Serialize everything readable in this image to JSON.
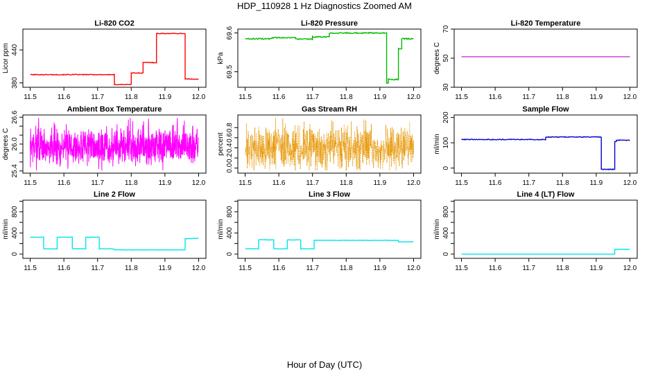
{
  "title": "HDP_110928  1 Hz Diagnostics Zoomed AM",
  "xlabel": "Hour of Day (UTC)",
  "chart_data": [
    {
      "type": "line",
      "title": "Li-820 CO2",
      "ylabel": "Licor ppm",
      "color": "#ff0000",
      "xlim": [
        11.5,
        12.0
      ],
      "xticks": [
        11.5,
        11.6,
        11.7,
        11.8,
        11.9,
        12.0
      ],
      "xtick_labels": [
        "11.5",
        "11.6",
        "11.7",
        "11.8",
        "11.9",
        "12.0"
      ],
      "ylim": [
        372,
        478
      ],
      "yticks": [
        380,
        440
      ],
      "ytick_labels": [
        "380",
        "440"
      ],
      "noise": 0.7,
      "x": [
        11.5,
        11.75,
        11.75,
        11.8,
        11.8,
        11.835,
        11.835,
        11.875,
        11.875,
        11.96,
        11.96,
        12.0
      ],
      "y": [
        395,
        395,
        377,
        377,
        398,
        398,
        417,
        417,
        470,
        470,
        387,
        387
      ]
    },
    {
      "type": "line",
      "title": "Li-820 Pressure",
      "ylabel": "kPa",
      "color": "#00bb00",
      "xlim": [
        11.5,
        12.0
      ],
      "xticks": [
        11.5,
        11.6,
        11.7,
        11.8,
        11.9,
        12.0
      ],
      "xtick_labels": [
        "11.5",
        "11.6",
        "11.7",
        "11.8",
        "11.9",
        "12.0"
      ],
      "ylim": [
        69.46,
        69.61
      ],
      "yticks": [
        69.5,
        69.6
      ],
      "ytick_labels": [
        "69.5",
        "69.6"
      ],
      "noise": 0.0015,
      "x": [
        11.5,
        11.58,
        11.58,
        11.65,
        11.65,
        11.7,
        11.7,
        11.75,
        11.75,
        11.92,
        11.92,
        11.925,
        11.925,
        11.955,
        11.955,
        11.965,
        11.965,
        12.0
      ],
      "y": [
        69.585,
        69.585,
        69.588,
        69.588,
        69.584,
        69.584,
        69.59,
        69.59,
        69.6,
        69.6,
        69.47,
        69.47,
        69.48,
        69.48,
        69.56,
        69.56,
        69.585,
        69.585
      ]
    },
    {
      "type": "line",
      "title": "Li-820 Temperature",
      "ylabel": "degrees C",
      "color": "#cc33cc",
      "xlim": [
        11.5,
        12.0
      ],
      "xticks": [
        11.5,
        11.6,
        11.7,
        11.8,
        11.9,
        12.0
      ],
      "xtick_labels": [
        "11.5",
        "11.6",
        "11.7",
        "11.8",
        "11.9",
        "12.0"
      ],
      "ylim": [
        30,
        70
      ],
      "yticks": [
        30,
        50,
        70
      ],
      "ytick_labels": [
        "30",
        "50",
        "70"
      ],
      "noise": 0,
      "x": [
        11.5,
        12.0
      ],
      "y": [
        51,
        51
      ]
    },
    {
      "type": "line",
      "title": "Ambient Box Temperature",
      "ylabel": "degrees C",
      "color": "#ff00ff",
      "xlim": [
        11.5,
        12.0
      ],
      "xticks": [
        11.5,
        11.6,
        11.7,
        11.8,
        11.9,
        12.0
      ],
      "xtick_labels": [
        "11.5",
        "11.6",
        "11.7",
        "11.8",
        "11.9",
        "12.0"
      ],
      "ylim": [
        25.35,
        26.65
      ],
      "yticks": [
        25.4,
        25.6,
        25.8,
        26.0,
        26.2,
        26.4,
        26.6
      ],
      "ytick_labels": [
        "25.4",
        "",
        "",
        "26.0",
        "",
        "",
        "26.6"
      ],
      "noise": 0,
      "x": [
        11.5,
        12.0
      ],
      "y": [
        25.9,
        25.9
      ],
      "random": {
        "min": 25.4,
        "max": 26.6,
        "center": 25.95,
        "spread": 0.2,
        "count": 900,
        "seed": 7
      }
    },
    {
      "type": "line",
      "title": "Gas Stream RH",
      "ylabel": "percent",
      "color": "#e69500",
      "xlim": [
        11.5,
        12.0
      ],
      "xticks": [
        11.5,
        11.6,
        11.7,
        11.8,
        11.9,
        12.0
      ],
      "xtick_labels": [
        "11.5",
        "11.6",
        "11.7",
        "11.8",
        "11.9",
        "12.0"
      ],
      "ylim": [
        -0.1,
        1.05
      ],
      "yticks": [
        0.0,
        0.2,
        0.4,
        0.6,
        0.8
      ],
      "ytick_labels": [
        "0.0",
        "0.2",
        "0.4",
        "0.6",
        "0.8"
      ],
      "noise": 0,
      "x": [
        11.5,
        12.0
      ],
      "y": [
        0.35,
        0.35
      ],
      "random": {
        "min": -0.05,
        "max": 1.0,
        "center": 0.4,
        "spread": 0.2,
        "count": 900,
        "seed": 13
      },
      "dotted": true
    },
    {
      "type": "line",
      "title": "Sample Flow",
      "ylabel": "ml/min",
      "color": "#0000cc",
      "xlim": [
        11.5,
        12.0
      ],
      "xticks": [
        11.5,
        11.6,
        11.7,
        11.8,
        11.9,
        12.0
      ],
      "xtick_labels": [
        "11.5",
        "11.6",
        "11.7",
        "11.8",
        "11.9",
        "12.0"
      ],
      "ylim": [
        -20,
        210
      ],
      "yticks": [
        0,
        100,
        200
      ],
      "ytick_labels": [
        "0",
        "100",
        "200"
      ],
      "noise": 1.5,
      "x": [
        11.5,
        11.75,
        11.75,
        11.915,
        11.915,
        11.955,
        11.955,
        11.96,
        11.96,
        12.0
      ],
      "y": [
        113,
        113,
        123,
        123,
        -5,
        -5,
        105,
        105,
        110,
        110
      ]
    },
    {
      "type": "line",
      "title": "Line 2 Flow",
      "ylabel": "ml/min",
      "color": "#00e5ee",
      "xlim": [
        11.5,
        12.0
      ],
      "xticks": [
        11.5,
        11.6,
        11.7,
        11.8,
        11.9,
        12.0
      ],
      "xtick_labels": [
        "11.5",
        "11.6",
        "11.7",
        "11.8",
        "11.9",
        "12.0"
      ],
      "ylim": [
        -80,
        1020
      ],
      "yticks": [
        0,
        200,
        400,
        600,
        800,
        1000
      ],
      "ytick_labels": [
        "0",
        "",
        "400",
        "",
        "800",
        ""
      ],
      "noise": 4,
      "x": [
        11.5,
        11.54,
        11.54,
        11.58,
        11.58,
        11.625,
        11.625,
        11.665,
        11.665,
        11.705,
        11.705,
        11.75,
        11.75,
        11.96,
        11.96,
        12.0
      ],
      "y": [
        320,
        320,
        100,
        100,
        320,
        320,
        100,
        100,
        320,
        320,
        100,
        100,
        80,
        80,
        290,
        300
      ]
    },
    {
      "type": "line",
      "title": "Line 3 Flow",
      "ylabel": "ml/min",
      "color": "#00e5ee",
      "xlim": [
        11.5,
        12.0
      ],
      "xticks": [
        11.5,
        11.6,
        11.7,
        11.8,
        11.9,
        12.0
      ],
      "xtick_labels": [
        "11.5",
        "11.6",
        "11.7",
        "11.8",
        "11.9",
        "12.0"
      ],
      "ylim": [
        -80,
        1020
      ],
      "yticks": [
        0,
        200,
        400,
        600,
        800,
        1000
      ],
      "ytick_labels": [
        "0",
        "",
        "400",
        "",
        "800",
        ""
      ],
      "noise": 4,
      "x": [
        11.5,
        11.54,
        11.54,
        11.585,
        11.585,
        11.625,
        11.625,
        11.665,
        11.665,
        11.705,
        11.705,
        11.955,
        11.955,
        12.0
      ],
      "y": [
        100,
        100,
        270,
        270,
        100,
        100,
        270,
        270,
        100,
        100,
        260,
        260,
        230,
        235
      ]
    },
    {
      "type": "line",
      "title": "Line 4 (LT) Flow",
      "ylabel": "ml/min",
      "color": "#00e5ee",
      "xlim": [
        11.5,
        12.0
      ],
      "xticks": [
        11.5,
        11.6,
        11.7,
        11.8,
        11.9,
        12.0
      ],
      "xtick_labels": [
        "11.5",
        "11.6",
        "11.7",
        "11.8",
        "11.9",
        "12.0"
      ],
      "ylim": [
        -80,
        1020
      ],
      "yticks": [
        0,
        200,
        400,
        600,
        800,
        1000
      ],
      "ytick_labels": [
        "0",
        "",
        "400",
        "",
        "800",
        ""
      ],
      "noise": 0,
      "x": [
        11.5,
        11.955,
        11.955,
        12.0
      ],
      "y": [
        0,
        0,
        90,
        90
      ]
    }
  ]
}
